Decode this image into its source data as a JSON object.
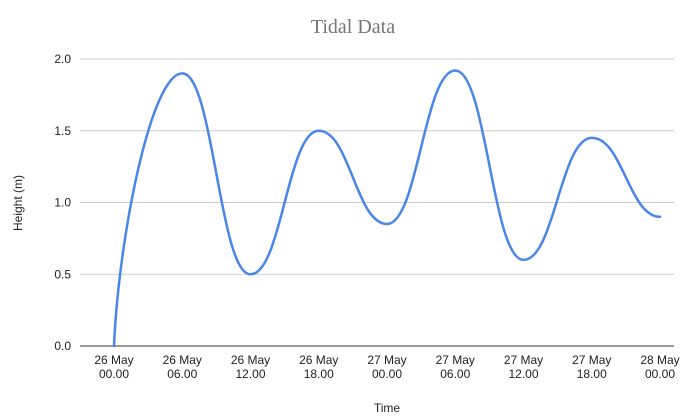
{
  "chart_data": {
    "type": "line",
    "title": "Tidal Data",
    "xlabel": "Time",
    "ylabel": "Height (m)",
    "ylim": [
      0,
      2.0
    ],
    "yticks": [
      "0.0",
      "0.5",
      "1.0",
      "1.5",
      "2.0"
    ],
    "ytick_values": [
      0,
      0.5,
      1.0,
      1.5,
      2.0
    ],
    "categories": [
      [
        "26 May",
        "00.00"
      ],
      [
        "26 May",
        "06.00"
      ],
      [
        "26 May",
        "12.00"
      ],
      [
        "26 May",
        "18.00"
      ],
      [
        "27 May",
        "00.00"
      ],
      [
        "27 May",
        "06.00"
      ],
      [
        "27 May",
        "12.00"
      ],
      [
        "27 May",
        "18.00"
      ],
      [
        "28 May",
        "00.00"
      ]
    ],
    "series": [
      {
        "values": [
          0,
          1.9,
          0.5,
          1.5,
          0.85,
          1.92,
          0.6,
          1.45,
          0.9
        ]
      }
    ],
    "grid": true,
    "legend": "none",
    "colors": {
      "series": "#4a86e8",
      "grid": "#cccccc",
      "title": "#757575"
    }
  }
}
